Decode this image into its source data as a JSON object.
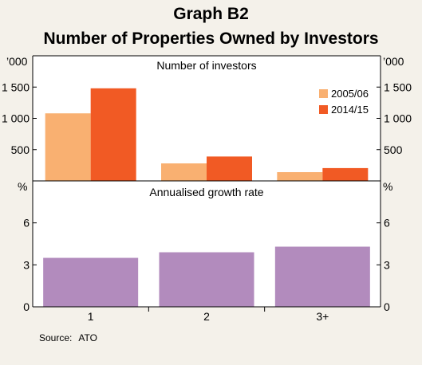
{
  "title": "Graph B2",
  "subtitle": "Number of Properties Owned by Investors",
  "source_label": "Source:",
  "source_value": "ATO",
  "colors": {
    "background": "#f4f1ea",
    "panel": "#ffffff",
    "series_2005": "#f9b071",
    "series_2014": "#f15a24",
    "growth": "#b28bbd"
  },
  "chart_data": [
    {
      "type": "bar",
      "title": "Number of investors",
      "unit_left": "’000",
      "unit_right": "’000",
      "categories": [
        "1",
        "2",
        "3+"
      ],
      "series": [
        {
          "name": "2005/06",
          "values": [
            1080,
            280,
            140
          ]
        },
        {
          "name": "2014/15",
          "values": [
            1480,
            390,
            205
          ]
        }
      ],
      "ylim": [
        0,
        2000
      ],
      "yticks": [
        500,
        1000,
        1500
      ],
      "ytick_labels": [
        "500",
        "1 000",
        "1 500"
      ],
      "legend_position": "top-right",
      "grid": false
    },
    {
      "type": "bar",
      "title": "Annualised growth rate",
      "unit_left": "%",
      "unit_right": "%",
      "categories": [
        "1",
        "2",
        "3+"
      ],
      "series": [
        {
          "name": "",
          "values": [
            3.5,
            3.9,
            4.3
          ]
        }
      ],
      "ylim": [
        0,
        9
      ],
      "yticks": [
        0,
        3,
        6
      ],
      "ytick_labels": [
        "0",
        "3",
        "6"
      ],
      "grid": false
    }
  ]
}
